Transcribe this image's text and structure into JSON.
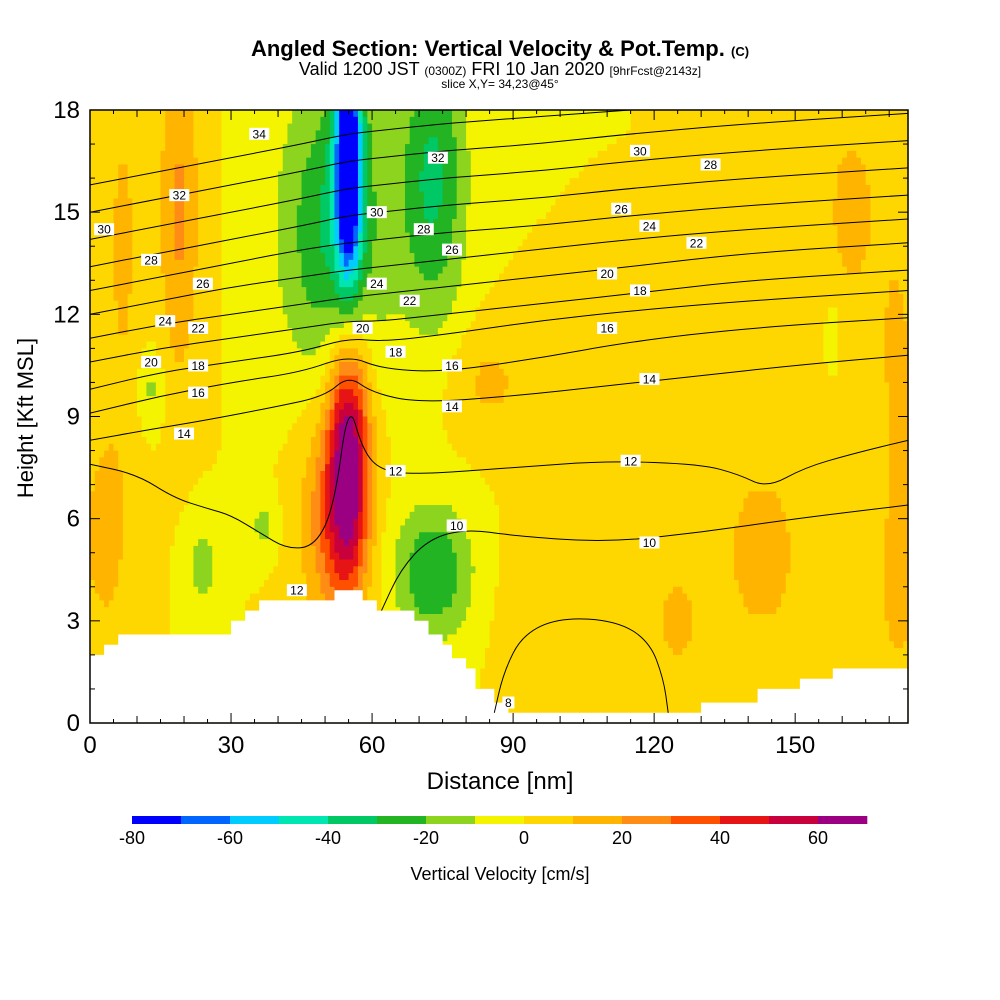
{
  "chart_data": {
    "type": "heatmap",
    "title": "Angled Section: Vertical Velocity & Pot.Temp.",
    "title_mark": "(C)",
    "subtitle_parts": [
      "Valid 1200 JST",
      "(0300Z)",
      "FRI 10 Jan 2020",
      "[9hrFcst@2143z]"
    ],
    "slice_info": "slice X,Y= 34,23@45°",
    "xlabel": "Distance [nm]",
    "ylabel": "Height [Kft MSL]",
    "xlim": [
      0,
      174
    ],
    "ylim": [
      0,
      18
    ],
    "x_ticks": [
      "0",
      "30",
      "60",
      "90",
      "120",
      "150"
    ],
    "x_tick_values": [
      0,
      30,
      60,
      90,
      120,
      150
    ],
    "y_ticks": [
      "0",
      "3",
      "6",
      "9",
      "12",
      "15",
      "18"
    ],
    "y_tick_values": [
      0,
      3,
      6,
      9,
      12,
      15,
      18
    ],
    "colorbar": {
      "label": "Vertical Velocity [cm/s]",
      "tick_labels": [
        "-80",
        "-60",
        "-40",
        "-20",
        "0",
        "20",
        "40",
        "60"
      ],
      "tick_values": [
        -80,
        -60,
        -40,
        -20,
        0,
        20,
        40,
        60
      ],
      "bins": [
        -80,
        -70,
        -60,
        -50,
        -40,
        -30,
        -20,
        -10,
        0,
        10,
        20,
        30,
        40,
        50,
        60,
        70
      ],
      "colors": [
        "#0000ff",
        "#0066ff",
        "#00ccff",
        "#00e6b0",
        "#00c864",
        "#22b422",
        "#8cd41e",
        "#f4f400",
        "#ffd700",
        "#ffb400",
        "#ff8c14",
        "#ff5000",
        "#e61414",
        "#c8003c",
        "#9b0082"
      ]
    },
    "background_value": 0,
    "vertical_velocity_features": [
      {
        "x": 55,
        "y": 8,
        "sx": 3,
        "sy": 2.6,
        "value": 62
      },
      {
        "x": 52,
        "y": 6,
        "sx": 5,
        "sy": 2.3,
        "value": 30
      },
      {
        "x": 55,
        "y": 16.5,
        "sx": 2,
        "sy": 2.5,
        "value": -82
      },
      {
        "x": 52,
        "y": 14.5,
        "sx": 8,
        "sy": 3.2,
        "value": -32
      },
      {
        "x": 73,
        "y": 16,
        "sx": 5,
        "sy": 3,
        "value": -32
      },
      {
        "x": 73,
        "y": 4.4,
        "sx": 6,
        "sy": 1.4,
        "value": -30
      },
      {
        "x": 24,
        "y": 4.6,
        "sx": 2.5,
        "sy": 1,
        "value": -15
      },
      {
        "x": 37,
        "y": 5.8,
        "sx": 2,
        "sy": 0.6,
        "value": -14
      },
      {
        "x": 13,
        "y": 9.8,
        "sx": 2,
        "sy": 0.8,
        "value": -13
      },
      {
        "x": 158,
        "y": 11.4,
        "sx": 1,
        "sy": 0.7,
        "value": -15
      },
      {
        "x": 19,
        "y": 15,
        "sx": 3,
        "sy": 3.5,
        "value": 22
      },
      {
        "x": 7,
        "y": 14,
        "sx": 3,
        "sy": 4,
        "value": 12
      },
      {
        "x": 3,
        "y": 5.5,
        "sx": 4,
        "sy": 2.4,
        "value": 14
      },
      {
        "x": 143,
        "y": 5,
        "sx": 5,
        "sy": 1.6,
        "value": 20
      },
      {
        "x": 125,
        "y": 3,
        "sx": 5,
        "sy": 1.5,
        "value": 12
      },
      {
        "x": 172,
        "y": 4,
        "sx": 3,
        "sy": 2,
        "value": 15
      },
      {
        "x": 162,
        "y": 15,
        "sx": 6,
        "sy": 3,
        "value": 12
      },
      {
        "x": 85,
        "y": 10,
        "sx": 6,
        "sy": 1.2,
        "value": 12
      },
      {
        "x": 100,
        "y": 3.6,
        "sx": 10,
        "sy": 1.8,
        "value": 6
      },
      {
        "x": 172,
        "y": 10,
        "sx": 3,
        "sy": 3,
        "value": 12
      }
    ],
    "terrain": [
      [
        0,
        2
      ],
      [
        3,
        2
      ],
      [
        3,
        2.3
      ],
      [
        6,
        2.3
      ],
      [
        6,
        2.6
      ],
      [
        10,
        2.6
      ],
      [
        10,
        2.6
      ],
      [
        30,
        2.6
      ],
      [
        30,
        3
      ],
      [
        33,
        3
      ],
      [
        33,
        3.3
      ],
      [
        36,
        3.3
      ],
      [
        36,
        3.6
      ],
      [
        52,
        3.6
      ],
      [
        52,
        3.9
      ],
      [
        58,
        3.9
      ],
      [
        58,
        3.6
      ],
      [
        61,
        3.6
      ],
      [
        61,
        3.3
      ],
      [
        69,
        3.3
      ],
      [
        69,
        3
      ],
      [
        72,
        3
      ],
      [
        72,
        2.6
      ],
      [
        75,
        2.6
      ],
      [
        75,
        2.3
      ],
      [
        77,
        2.3
      ],
      [
        77,
        1.9
      ],
      [
        80,
        1.9
      ],
      [
        80,
        1.6
      ],
      [
        82,
        1.6
      ],
      [
        82,
        1
      ],
      [
        86,
        1
      ],
      [
        86,
        0.6
      ],
      [
        89,
        0.6
      ],
      [
        89,
        0.3
      ],
      [
        130,
        0.3
      ],
      [
        130,
        0.6
      ],
      [
        142,
        0.6
      ],
      [
        142,
        1
      ],
      [
        151,
        1
      ],
      [
        151,
        1.3
      ],
      [
        158,
        1.3
      ],
      [
        158,
        1.6
      ],
      [
        174,
        1.6
      ]
    ],
    "theta_contours": [
      {
        "level": 8,
        "pts": [
          [
            86,
            0.3
          ],
          [
            88,
            1.5
          ],
          [
            92,
            2.6
          ],
          [
            100,
            3.1
          ],
          [
            112,
            3.0
          ],
          [
            119,
            2.4
          ],
          [
            122,
            1.3
          ],
          [
            123,
            0.3
          ]
        ]
      },
      {
        "level": 10,
        "pts": [
          [
            62,
            3.3
          ],
          [
            66,
            4.5
          ],
          [
            72,
            5.4
          ],
          [
            80,
            5.7
          ],
          [
            90,
            5.5
          ],
          [
            110,
            5.3
          ],
          [
            130,
            5.6
          ],
          [
            150,
            6
          ],
          [
            174,
            6.4
          ]
        ]
      },
      {
        "level": 12,
        "pts": [
          [
            0,
            7.6
          ],
          [
            10,
            7.3
          ],
          [
            18,
            6.6
          ],
          [
            25,
            6.3
          ],
          [
            30,
            6.1
          ],
          [
            36,
            5.6
          ],
          [
            42,
            5.1
          ],
          [
            48,
            5.2
          ],
          [
            52,
            6.4
          ],
          [
            55,
            9.5
          ],
          [
            58,
            8
          ],
          [
            62,
            7.4
          ],
          [
            70,
            7.3
          ],
          [
            90,
            7.5
          ],
          [
            110,
            7.7
          ],
          [
            130,
            7.6
          ],
          [
            138,
            7.3
          ],
          [
            144,
            6.9
          ],
          [
            152,
            7.5
          ],
          [
            162,
            7.9
          ],
          [
            174,
            8.3
          ]
        ]
      },
      {
        "level": 14,
        "pts": [
          [
            0,
            8.3
          ],
          [
            12,
            8.6
          ],
          [
            25,
            8.9
          ],
          [
            40,
            9.3
          ],
          [
            50,
            9.6
          ],
          [
            55,
            10.2
          ],
          [
            60,
            9.7
          ],
          [
            70,
            9.4
          ],
          [
            90,
            9.6
          ],
          [
            110,
            9.9
          ],
          [
            130,
            10.2
          ],
          [
            150,
            10.5
          ],
          [
            174,
            10.8
          ]
        ]
      },
      {
        "level": 16,
        "pts": [
          [
            0,
            9.1
          ],
          [
            15,
            9.6
          ],
          [
            30,
            10
          ],
          [
            45,
            10.3
          ],
          [
            55,
            10.8
          ],
          [
            62,
            10.4
          ],
          [
            75,
            10.3
          ],
          [
            95,
            10.7
          ],
          [
            115,
            11.2
          ],
          [
            140,
            11.6
          ],
          [
            174,
            11.9
          ]
        ]
      },
      {
        "level": 18,
        "pts": [
          [
            0,
            9.8
          ],
          [
            15,
            10.3
          ],
          [
            30,
            10.6
          ],
          [
            45,
            10.9
          ],
          [
            55,
            11.3
          ],
          [
            62,
            11.2
          ],
          [
            75,
            11.4
          ],
          [
            95,
            11.8
          ],
          [
            115,
            12.1
          ],
          [
            140,
            12.4
          ],
          [
            174,
            12.7
          ]
        ]
      },
      {
        "level": 20,
        "pts": [
          [
            0,
            10.6
          ],
          [
            15,
            11
          ],
          [
            30,
            11.3
          ],
          [
            45,
            11.6
          ],
          [
            55,
            11.8
          ],
          [
            62,
            11.8
          ],
          [
            75,
            12
          ],
          [
            95,
            12.3
          ],
          [
            115,
            12.6
          ],
          [
            140,
            13
          ],
          [
            174,
            13.3
          ]
        ]
      },
      {
        "level": 22,
        "pts": [
          [
            0,
            11.3
          ],
          [
            15,
            11.7
          ],
          [
            30,
            12
          ],
          [
            45,
            12.3
          ],
          [
            55,
            12.5
          ],
          [
            62,
            12.6
          ],
          [
            75,
            12.8
          ],
          [
            95,
            13.1
          ],
          [
            115,
            13.4
          ],
          [
            140,
            13.8
          ],
          [
            174,
            14.1
          ]
        ]
      },
      {
        "level": 24,
        "pts": [
          [
            0,
            12
          ],
          [
            15,
            12.4
          ],
          [
            30,
            12.8
          ],
          [
            45,
            13.1
          ],
          [
            55,
            13.3
          ],
          [
            62,
            13.4
          ],
          [
            75,
            13.6
          ],
          [
            95,
            13.9
          ],
          [
            115,
            14.2
          ],
          [
            140,
            14.5
          ],
          [
            174,
            14.8
          ]
        ]
      },
      {
        "level": 26,
        "pts": [
          [
            0,
            12.7
          ],
          [
            15,
            13.1
          ],
          [
            30,
            13.5
          ],
          [
            45,
            13.9
          ],
          [
            55,
            14.1
          ],
          [
            62,
            14.2
          ],
          [
            75,
            14.4
          ],
          [
            95,
            14.6
          ],
          [
            115,
            14.9
          ],
          [
            140,
            15.2
          ],
          [
            174,
            15.5
          ]
        ]
      },
      {
        "level": 28,
        "pts": [
          [
            0,
            13.4
          ],
          [
            15,
            13.8
          ],
          [
            30,
            14.2
          ],
          [
            45,
            14.6
          ],
          [
            55,
            14.9
          ],
          [
            62,
            15
          ],
          [
            75,
            15.2
          ],
          [
            95,
            15.4
          ],
          [
            115,
            15.7
          ],
          [
            140,
            16
          ],
          [
            174,
            16.3
          ]
        ]
      },
      {
        "level": 30,
        "pts": [
          [
            0,
            14.2
          ],
          [
            15,
            14.6
          ],
          [
            30,
            15
          ],
          [
            45,
            15.4
          ],
          [
            55,
            15.7
          ],
          [
            62,
            15.8
          ],
          [
            75,
            16
          ],
          [
            95,
            16.2
          ],
          [
            115,
            16.5
          ],
          [
            140,
            16.8
          ],
          [
            174,
            17.1
          ]
        ]
      },
      {
        "level": 32,
        "pts": [
          [
            0,
            15
          ],
          [
            15,
            15.4
          ],
          [
            30,
            15.8
          ],
          [
            45,
            16.2
          ],
          [
            55,
            16.5
          ],
          [
            62,
            16.6
          ],
          [
            75,
            16.8
          ],
          [
            95,
            17
          ],
          [
            115,
            17.3
          ],
          [
            140,
            17.6
          ],
          [
            174,
            17.9
          ]
        ]
      },
      {
        "level": 34,
        "pts": [
          [
            0,
            15.8
          ],
          [
            15,
            16.2
          ],
          [
            30,
            16.6
          ],
          [
            45,
            17
          ],
          [
            55,
            17.3
          ],
          [
            62,
            17.4
          ],
          [
            75,
            17.6
          ],
          [
            95,
            17.8
          ],
          [
            115,
            18
          ]
        ]
      }
    ],
    "contour_labels": [
      {
        "text": "34",
        "x": 36,
        "y": 17.3
      },
      {
        "text": "32",
        "x": 19,
        "y": 15.5
      },
      {
        "text": "32",
        "x": 74,
        "y": 16.6
      },
      {
        "text": "30",
        "x": 3,
        "y": 14.5
      },
      {
        "text": "30",
        "x": 61,
        "y": 15
      },
      {
        "text": "30",
        "x": 117,
        "y": 16.8
      },
      {
        "text": "28",
        "x": 13,
        "y": 13.6
      },
      {
        "text": "28",
        "x": 71,
        "y": 14.5
      },
      {
        "text": "28",
        "x": 132,
        "y": 16.4
      },
      {
        "text": "26",
        "x": 24,
        "y": 12.9
      },
      {
        "text": "26",
        "x": 77,
        "y": 13.9
      },
      {
        "text": "26",
        "x": 113,
        "y": 15.1
      },
      {
        "text": "24",
        "x": 16,
        "y": 11.8
      },
      {
        "text": "24",
        "x": 61,
        "y": 12.9
      },
      {
        "text": "24",
        "x": 119,
        "y": 14.6
      },
      {
        "text": "22",
        "x": 23,
        "y": 11.6
      },
      {
        "text": "22",
        "x": 68,
        "y": 12.4
      },
      {
        "text": "22",
        "x": 129,
        "y": 14.1
      },
      {
        "text": "20",
        "x": 13,
        "y": 10.6
      },
      {
        "text": "20",
        "x": 58,
        "y": 11.6
      },
      {
        "text": "20",
        "x": 110,
        "y": 13.2
      },
      {
        "text": "18",
        "x": 23,
        "y": 10.5
      },
      {
        "text": "18",
        "x": 65,
        "y": 10.9
      },
      {
        "text": "18",
        "x": 117,
        "y": 12.7
      },
      {
        "text": "16",
        "x": 23,
        "y": 9.7
      },
      {
        "text": "16",
        "x": 77,
        "y": 10.5
      },
      {
        "text": "16",
        "x": 110,
        "y": 11.6
      },
      {
        "text": "14",
        "x": 20,
        "y": 8.5
      },
      {
        "text": "14",
        "x": 77,
        "y": 9.3
      },
      {
        "text": "14",
        "x": 119,
        "y": 10.1
      },
      {
        "text": "12",
        "x": 65,
        "y": 7.4
      },
      {
        "text": "12",
        "x": 115,
        "y": 7.7
      },
      {
        "text": "12",
        "x": 44,
        "y": 3.9
      },
      {
        "text": "10",
        "x": 78,
        "y": 5.8
      },
      {
        "text": "10",
        "x": 119,
        "y": 5.3
      },
      {
        "text": "8",
        "x": 89,
        "y": 0.6
      }
    ]
  }
}
